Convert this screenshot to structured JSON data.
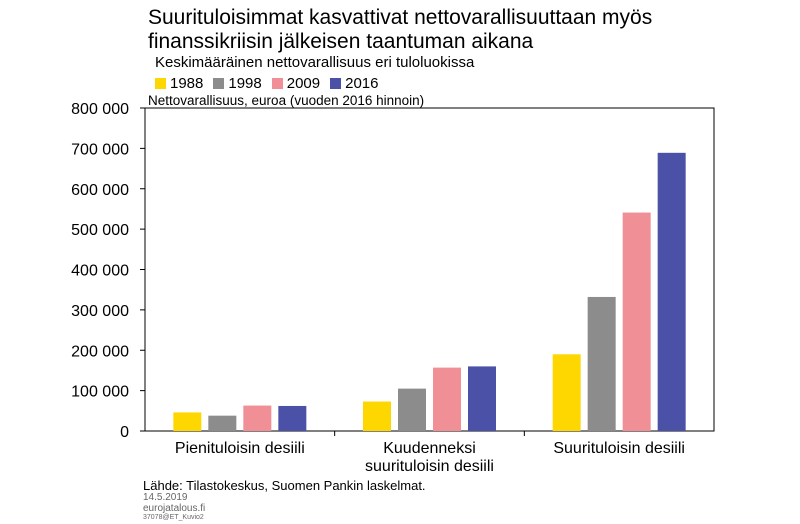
{
  "chart_data": {
    "type": "bar",
    "title": "Suurituloisimmat kasvattivat nettovarallisuuttaan myös finanssikriisin jälkeisen taantuman aikana",
    "subtitle": "Keskimääräinen nettovarallisuus eri tuloluokissa",
    "ylabel": "Nettovarallisuus, euroa (vuoden 2016 hinnoin)",
    "xlabel": "",
    "categories": [
      "Pienituloisin desiili",
      "Kuudenneksi\nsuurituloisin desiili",
      "Suurituloisin desiili"
    ],
    "series": [
      {
        "name": "1988",
        "color": "#ffd700",
        "values": [
          46000,
          73000,
          190000
        ]
      },
      {
        "name": "1998",
        "color": "#8c8c8c",
        "values": [
          38000,
          105000,
          332000
        ]
      },
      {
        "name": "2009",
        "color": "#f08f95",
        "values": [
          63000,
          157000,
          541000
        ]
      },
      {
        "name": "2016",
        "color": "#4a51a6",
        "values": [
          62000,
          160000,
          689000
        ]
      }
    ],
    "ylim": [
      0,
      800000
    ],
    "yticks": [
      0,
      100000,
      200000,
      300000,
      400000,
      500000,
      600000,
      700000,
      800000
    ],
    "ytick_labels": [
      "0",
      "100 000",
      "200 000",
      "300 000",
      "400 000",
      "500 000",
      "600 000",
      "700 000",
      "800 000"
    ],
    "grid": false,
    "legend_position": "top-left"
  },
  "footer": {
    "source": "Lähde: Tilastokeskus, Suomen Pankin laskelmat.",
    "date": "14.5.2019",
    "site": "eurojatalous.fi",
    "code": "37078@ET_Kuvio2"
  }
}
